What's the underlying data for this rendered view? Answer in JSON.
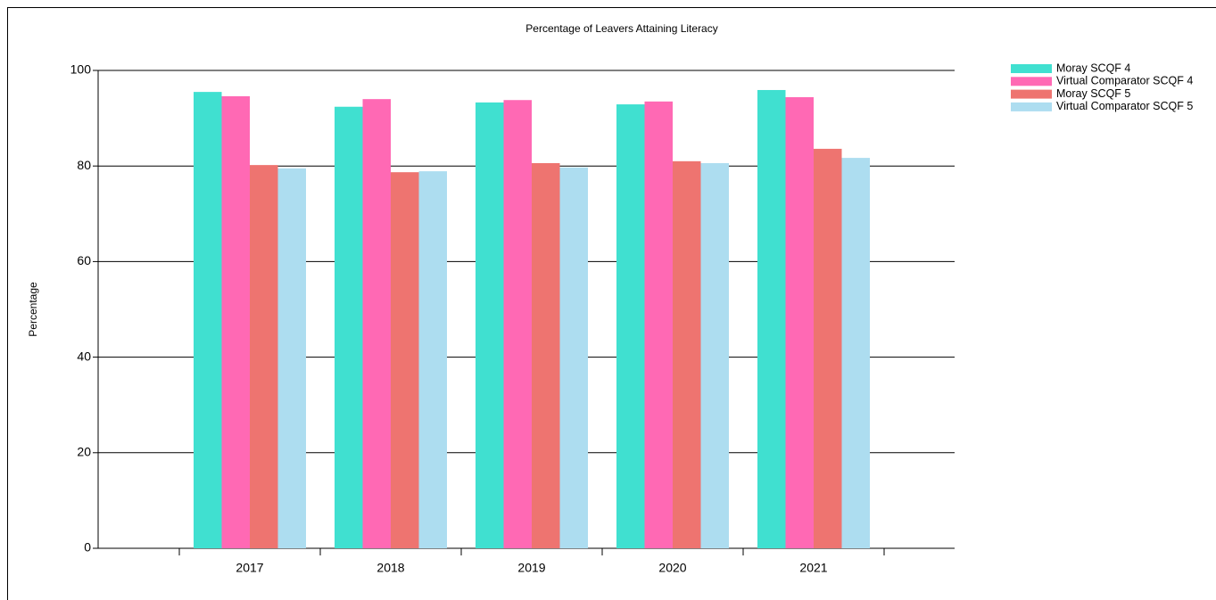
{
  "chart_data": {
    "type": "bar",
    "title": "Percentage of Leavers Attaining Literacy",
    "y_label": "Percentage",
    "categories": [
      "2017",
      "2018",
      "2019",
      "2020",
      "2021"
    ],
    "series": [
      {
        "name": "Moray SCQF 4",
        "color": "#40E0D0",
        "values": [
          95.5,
          92.4,
          93.3,
          92.9,
          95.9
        ]
      },
      {
        "name": "Virtual Comparator SCQF 4",
        "color": "#FF69B4",
        "values": [
          94.6,
          94.0,
          93.8,
          93.5,
          94.4
        ]
      },
      {
        "name": "Moray SCQF 5",
        "color": "#EE7470",
        "values": [
          80.2,
          78.7,
          80.6,
          81.0,
          83.6
        ]
      },
      {
        "name": "Virtual Comparator SCQF 5",
        "color": "#ADDDF0",
        "values": [
          79.5,
          78.9,
          79.7,
          80.6,
          81.7
        ]
      }
    ],
    "ylim": [
      0,
      100
    ],
    "yticks": [
      0,
      20,
      40,
      60,
      80,
      100
    ],
    "grid": true,
    "legend": "right"
  }
}
